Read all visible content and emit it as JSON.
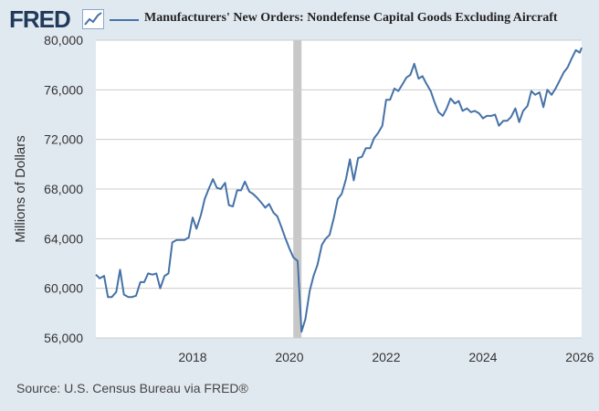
{
  "header": {
    "logo_text": "FRED",
    "logo_icon": "trend-line-icon",
    "title": "Manufacturers' New Orders: Nondefense Capital Goods Excluding Aircraft"
  },
  "source": "Source: U.S. Census Bureau via FRED®",
  "colors": {
    "background": "#e1e9f0",
    "plot_background": "#ffffff",
    "series_line": "#4572a7",
    "gridline": "#cccccc",
    "recession_band": "#c8c8c8"
  },
  "chart_data": {
    "type": "line",
    "title": "Manufacturers' New Orders: Nondefense Capital Goods Excluding Aircraft",
    "xlabel": "",
    "ylabel": "Millions of Dollars",
    "xlim": [
      2016.0,
      2026.04
    ],
    "ylim": [
      56000,
      80000
    ],
    "x_ticks": [
      2018,
      2020,
      2022,
      2024,
      2026
    ],
    "x_tick_labels": [
      "2018",
      "2020",
      "2022",
      "2024",
      "2026"
    ],
    "y_ticks": [
      56000,
      60000,
      64000,
      68000,
      72000,
      76000,
      80000
    ],
    "y_tick_labels": [
      "56,000",
      "60,000",
      "64,000",
      "68,000",
      "72,000",
      "76,000",
      "80,000"
    ],
    "grid": true,
    "recessions": [
      {
        "start": 2020.08,
        "end": 2020.25
      }
    ],
    "series": [
      {
        "name": "Manufacturers' New Orders: Nondefense Capital Goods Excluding Aircraft",
        "x": [
          2016.0,
          2016.08,
          2016.17,
          2016.25,
          2016.33,
          2016.42,
          2016.5,
          2016.58,
          2016.67,
          2016.75,
          2016.83,
          2016.92,
          2017.0,
          2017.08,
          2017.17,
          2017.25,
          2017.33,
          2017.42,
          2017.5,
          2017.58,
          2017.67,
          2017.75,
          2017.83,
          2017.92,
          2018.0,
          2018.08,
          2018.17,
          2018.25,
          2018.33,
          2018.42,
          2018.5,
          2018.58,
          2018.67,
          2018.75,
          2018.83,
          2018.92,
          2019.0,
          2019.08,
          2019.17,
          2019.25,
          2019.33,
          2019.42,
          2019.5,
          2019.58,
          2019.67,
          2019.75,
          2019.83,
          2019.92,
          2020.0,
          2020.08,
          2020.17,
          2020.25,
          2020.33,
          2020.42,
          2020.5,
          2020.58,
          2020.67,
          2020.75,
          2020.83,
          2020.92,
          2021.0,
          2021.08,
          2021.17,
          2021.25,
          2021.33,
          2021.42,
          2021.5,
          2021.58,
          2021.67,
          2021.75,
          2021.83,
          2021.92,
          2022.0,
          2022.08,
          2022.17,
          2022.25,
          2022.33,
          2022.42,
          2022.5,
          2022.58,
          2022.67,
          2022.75,
          2022.83,
          2022.92,
          2023.0,
          2023.08,
          2023.17,
          2023.25,
          2023.33,
          2023.42,
          2023.5,
          2023.58,
          2023.67,
          2023.75,
          2023.83,
          2023.92,
          2024.0,
          2024.08,
          2024.17,
          2024.25,
          2024.33,
          2024.42,
          2024.5,
          2024.58,
          2024.67,
          2024.75,
          2024.83,
          2024.92,
          2025.0,
          2025.08,
          2025.17,
          2025.25,
          2025.33,
          2025.42,
          2025.5,
          2025.58,
          2025.67,
          2025.75,
          2025.83,
          2025.92,
          2026.0,
          2026.04
        ],
        "values": [
          61100,
          60800,
          61000,
          59300,
          59300,
          59700,
          61500,
          59500,
          59300,
          59300,
          59400,
          60500,
          60500,
          61200,
          61100,
          61200,
          60000,
          61000,
          61200,
          63700,
          63900,
          63900,
          63900,
          64100,
          65700,
          64800,
          65900,
          67200,
          68000,
          68800,
          68100,
          68000,
          68500,
          66700,
          66600,
          67900,
          67900,
          68600,
          67800,
          67600,
          67300,
          66900,
          66500,
          66800,
          66100,
          65800,
          65000,
          64000,
          63200,
          62500,
          62200,
          56500,
          57500,
          59800,
          61000,
          61900,
          63500,
          64000,
          64300,
          65700,
          67200,
          67600,
          68800,
          70400,
          68700,
          70500,
          70600,
          71300,
          71300,
          72100,
          72500,
          73100,
          75200,
          75200,
          76100,
          75900,
          76400,
          77000,
          77200,
          78100,
          76900,
          77100,
          76500,
          75900,
          75000,
          74200,
          73900,
          74500,
          75300,
          74900,
          75100,
          74300,
          74500,
          74200,
          74300,
          74100,
          73700,
          73900,
          73900,
          74000,
          73100,
          73500,
          73500,
          73800,
          74500,
          73400,
          74300,
          74700,
          75900,
          75600,
          75800,
          74600,
          76000,
          75600,
          76100,
          76700,
          77400,
          77800,
          78500,
          79200,
          79000,
          79400
        ]
      }
    ]
  }
}
